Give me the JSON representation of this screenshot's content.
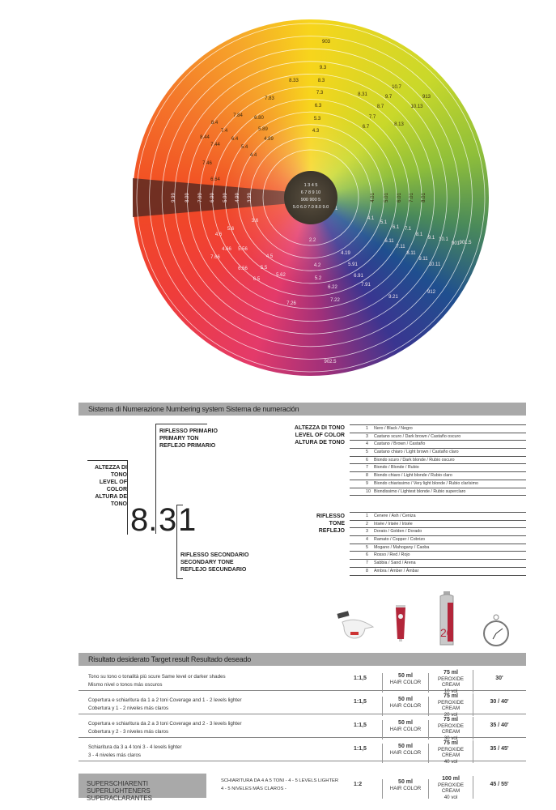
{
  "wheel": {
    "center_lines": [
      "1 3 4 5",
      "6 7 8 9 10",
      "900 900 5",
      "5.0 6.0 7.0 8.0 9.0"
    ],
    "labels": [
      "903",
      "9.3",
      "8.3",
      "7.3",
      "6.3",
      "5.3",
      "4.3",
      "8.33",
      "7.83",
      "6.80",
      "5.89",
      "4.89",
      "7.84",
      "8.4",
      "7.4",
      "8.44",
      "7.44",
      "6.4",
      "5.4",
      "4.4",
      "7.46",
      "6.64",
      "9.99",
      "8.99",
      "7.99",
      "6.99",
      "5.99",
      "4.99",
      "3.99",
      "8.31",
      "9.7",
      "10.7",
      "913",
      "10.13",
      "8.7",
      "7.7",
      "8.13",
      "6.7",
      "4.01",
      "5.01",
      "6.01",
      "7.01",
      "8.01",
      "7.1",
      "4.1",
      "5.1",
      "6.1",
      "7.1",
      "8.1",
      "9.1",
      "10.1",
      "901",
      "901.5",
      "6.11",
      "7.11",
      "8.11",
      "9.11",
      "10.11",
      "4.19",
      "5.91",
      "6.91",
      "7.91",
      "9.21",
      "912",
      "2.2",
      "4.2",
      "5.2",
      "6.22",
      "7.22",
      "902.5",
      "3.6",
      "5.6",
      "4.6",
      "4.66",
      "7.66",
      "5.56",
      "4.5",
      "5.5",
      "6.5",
      "5.62",
      "6.56",
      "7.26"
    ]
  },
  "numbering": {
    "header": "Sistema di Numerazione   Numbering system   Sistema de numeración",
    "example": {
      "level": "8.",
      "primary": "3",
      "secondary": "1"
    },
    "level_label": [
      "ALTEZZA DI TONO",
      "LEVEL OF COLOR",
      "ALTURA DE TONO"
    ],
    "primary_label": [
      "RIFLESSO PRIMARIO",
      "PRIMARY TON",
      "REFLEJO PRIMARIO"
    ],
    "secondary_label": [
      "RIFLESSO SECONDARIO",
      "SECONDARY TONE",
      "REFLEJO SECUNDARIO"
    ],
    "levels_title": [
      "ALTEZZA DI TONO",
      "LEVEL OF COLOR",
      "ALTURA DE TONO"
    ],
    "levels": [
      {
        "n": "1",
        "d": "Nero / Black / Negro"
      },
      {
        "n": "3",
        "d": "Castano scuro / Dark brown / Castaño oscuro"
      },
      {
        "n": "4",
        "d": "Castano / Brown / Castaño"
      },
      {
        "n": "5",
        "d": "Castano chiaro / Light brown / Castaño claro"
      },
      {
        "n": "6",
        "d": "Biondo scuro / Dark blonde / Rubio oscuro"
      },
      {
        "n": "7",
        "d": "Biondo / Blonde / Rubio"
      },
      {
        "n": "8",
        "d": "Biondo chiaro / Light blonde / Rubio claro"
      },
      {
        "n": "9",
        "d": "Biondo chiarissimo / Very light blonde / Rubio clarísimo"
      },
      {
        "n": "10",
        "d": "Biondissimo / Lightest blonde / Rubio superclaro"
      }
    ],
    "tones_title": [
      "RIFLESSO",
      "TONE",
      "REFLEJO"
    ],
    "tones": [
      {
        "n": "1",
        "d": "Cenere / Ash / Ceniza"
      },
      {
        "n": "2",
        "d": "Irisée / Irisée / Irisée"
      },
      {
        "n": "3",
        "d": "Dorato / Golden / Dorado"
      },
      {
        "n": "4",
        "d": "Ramato / Copper / Cobrizo"
      },
      {
        "n": "5",
        "d": "Mogano / Mahogany / Caoba"
      },
      {
        "n": "6",
        "d": "Rosso / Red / Rojo"
      },
      {
        "n": "7",
        "d": "Sabbia / Sand / Arena"
      },
      {
        "n": "8",
        "d": "Ambra / Amber / Ámbar"
      }
    ]
  },
  "products": {
    "icons": [
      "mixing-bowl-brush-icon",
      "hair-color-tube-icon",
      "peroxide-bottle-icon",
      "stopwatch-icon"
    ],
    "bottle_number": "20"
  },
  "results": {
    "header": "Risultato desiderato   Target result   Resultado deseado",
    "rows": [
      {
        "l1": "Tono su tono o tonalità più scure   Same level or darker shades",
        "l2": "Mismo nivel o tonos más oscuros",
        "ratio": "1:1,5",
        "color_ml": "50 ml",
        "color": "HAIR COLOR",
        "perox_ml": "75 ml",
        "perox": "PEROXIDE CREAM",
        "vol": "10 vol",
        "time": "30'"
      },
      {
        "l1": "Copertura e schiaritura da 1 a 2 toni   Coverage and 1 - 2 levels lighter",
        "l2": "Cobertura y 1 - 2 niveles más claros",
        "ratio": "1:1,5",
        "color_ml": "50 ml",
        "color": "HAIR COLOR",
        "perox_ml": "75 ml",
        "perox": "PEROXIDE CREAM",
        "vol": "20 vol",
        "time": "30 / 40'"
      },
      {
        "l1": "Copertura e schiaritura da 2 a 3 toni   Coverage and 2 - 3 levels lighter",
        "l2": "Cobertura y 2 - 3 niveles más claros",
        "ratio": "1:1,5",
        "color_ml": "50 ml",
        "color": "HAIR COLOR",
        "perox_ml": "75 ml",
        "perox": "PEROXIDE CREAM",
        "vol": "30 vol",
        "time": "35 / 40'"
      },
      {
        "l1": "Schiaritura da 3 a 4 toni   3 - 4 levels lighter",
        "l2": "3 - 4 niveles más claros",
        "ratio": "1:1,5",
        "color_ml": "50 ml",
        "color": "HAIR COLOR",
        "perox_ml": "75 ml",
        "perox": "PEROXIDE CREAM",
        "vol": "40 vol",
        "time": "35 / 45'"
      }
    ],
    "super": {
      "title1": "SUPERSCHIARENTI  SUPERLIGHTENERS",
      "title2": "SUPERACLARANTES",
      "l1": "SCHIARITURA DA 4 A 5 TONI - 4 - 5 LEVELS LIGHTER",
      "l2": "4 - 5 NIVELES MÁS CLAROS -",
      "ratio": "1:2",
      "color_ml": "50 ml",
      "color": "HAIR COLOR",
      "perox_ml": "100 ml",
      "perox": "PEROXIDE CREAM",
      "vol": "40 vol",
      "time": "45 / 55'"
    }
  }
}
